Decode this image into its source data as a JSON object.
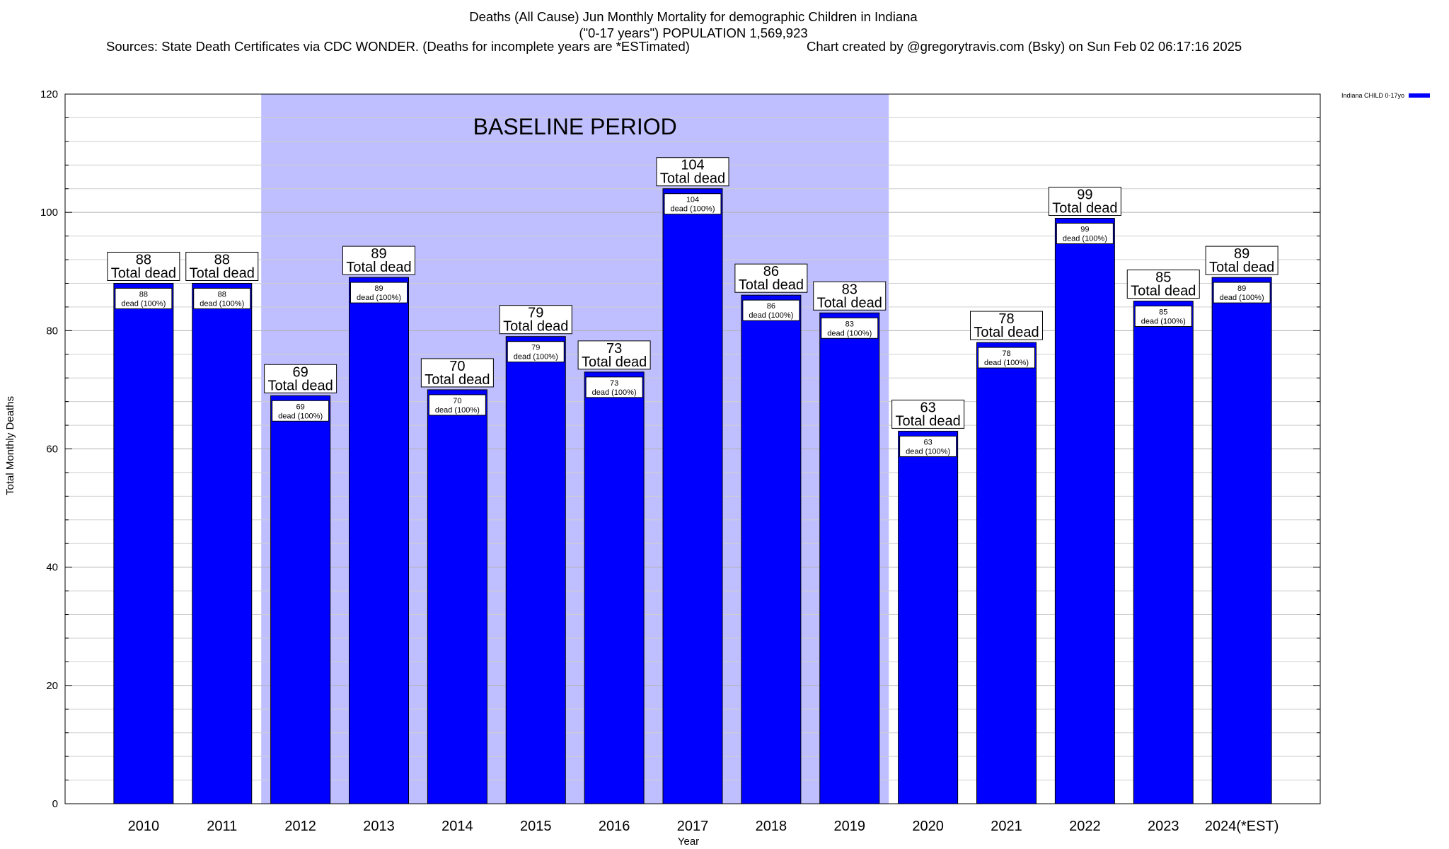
{
  "header": {
    "title_line1": "Deaths (All Cause) Jun Monthly Mortality for demographic Children in Indiana",
    "title_line2": "(\"0-17 years\") POPULATION 1,569,923",
    "sources": "Sources: State Death Certificates via CDC WONDER. (Deaths for incomplete years are *ESTimated)",
    "credit": "Chart created by @gregorytravis.com (Bsky) on Sun Feb 02 06:17:16 2025"
  },
  "legend": {
    "label": "Indiana CHILD 0-17yo",
    "color": "#0000ff"
  },
  "chart_data": {
    "type": "bar",
    "categories": [
      "2010",
      "2011",
      "2012",
      "2013",
      "2014",
      "2015",
      "2016",
      "2017",
      "2018",
      "2019",
      "2020",
      "2021",
      "2022",
      "2023",
      "2024(*EST)"
    ],
    "series": [
      {
        "name": "Indiana CHILD 0-17yo",
        "color": "#0000ff",
        "values": [
          88,
          88,
          69,
          89,
          70,
          79,
          73,
          104,
          86,
          83,
          63,
          78,
          99,
          85,
          89
        ]
      }
    ],
    "top_label_suffix": "Total dead",
    "inner_label_suffix": "dead (100%)",
    "xlabel": "Year",
    "ylabel": "Total Monthly Deaths",
    "ylim": [
      0,
      120
    ],
    "yticks": [
      0,
      20,
      40,
      60,
      80,
      100,
      120
    ],
    "grid": true,
    "baseline": {
      "label": "BASELINE PERIOD",
      "start": "2012",
      "end": "2019",
      "color": "#bfbfff"
    }
  }
}
